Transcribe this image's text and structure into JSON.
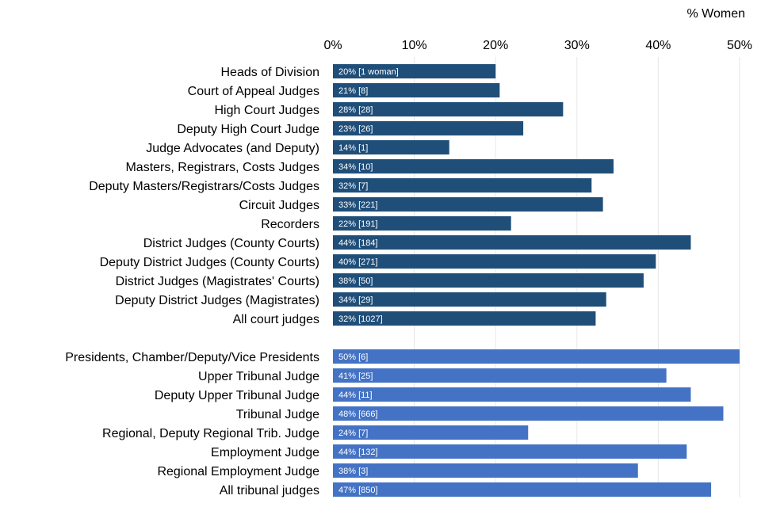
{
  "chart_data": {
    "type": "bar",
    "orientation": "horizontal",
    "title": "",
    "xlabel": "% Women",
    "ylabel": "",
    "xlim": [
      0,
      50
    ],
    "x_ticks": [
      "0%",
      "10%",
      "20%",
      "30%",
      "40%",
      "50%"
    ],
    "grid": true,
    "colors": {
      "court": "#1f4e79",
      "tribunal": "#4472c4"
    },
    "groups": [
      {
        "name": "court",
        "bars": [
          {
            "category": "Heads of Division",
            "value": 20,
            "label": "20% [1 woman]"
          },
          {
            "category": "Court of Appeal Judges",
            "value": 20.5,
            "label": "21% [8]"
          },
          {
            "category": "High Court Judges",
            "value": 28.3,
            "label": "28% [28]"
          },
          {
            "category": "Deputy High Court Judge",
            "value": 23.4,
            "label": "23% [26]"
          },
          {
            "category": "Judge Advocates (and Deputy)",
            "value": 14.3,
            "label": "14% [1]"
          },
          {
            "category": "Masters, Registrars, Costs Judges",
            "value": 34.5,
            "label": "34% [10]"
          },
          {
            "category": "Deputy Masters/Registrars/Costs Judges",
            "value": 31.8,
            "label": "32% [7]"
          },
          {
            "category": "Circuit Judges",
            "value": 33.2,
            "label": "33% [221]"
          },
          {
            "category": "Recorders",
            "value": 21.9,
            "label": "22% [191]"
          },
          {
            "category": "District Judges (County Courts)",
            "value": 44,
            "label": "44% [184]"
          },
          {
            "category": "Deputy District Judges (County Courts)",
            "value": 39.7,
            "label": "40% [271]"
          },
          {
            "category": "District Judges (Magistrates' Courts)",
            "value": 38.2,
            "label": "38% [50]"
          },
          {
            "category": "Deputy District Judges (Magistrates)",
            "value": 33.6,
            "label": "34% [29]"
          },
          {
            "category": "All court judges",
            "value": 32.3,
            "label": "32% [1027]"
          }
        ]
      },
      {
        "name": "tribunal",
        "bars": [
          {
            "category": "Presidents, Chamber/Deputy/Vice Presidents",
            "value": 50,
            "label": "50% [6]"
          },
          {
            "category": "Upper Tribunal Judge",
            "value": 41,
            "label": "41% [25]"
          },
          {
            "category": "Deputy Upper Tribunal Judge",
            "value": 44,
            "label": "44% [11]"
          },
          {
            "category": "Tribunal Judge",
            "value": 48,
            "label": "48% [666]"
          },
          {
            "category": "Regional, Deputy Regional Trib. Judge",
            "value": 24,
            "label": "24% [7]"
          },
          {
            "category": "Employment Judge",
            "value": 43.5,
            "label": "44% [132]"
          },
          {
            "category": "Regional Employment Judge",
            "value": 37.5,
            "label": "38% [3]"
          },
          {
            "category": "All tribunal judges",
            "value": 46.5,
            "label": "47% [850]"
          }
        ]
      }
    ]
  }
}
